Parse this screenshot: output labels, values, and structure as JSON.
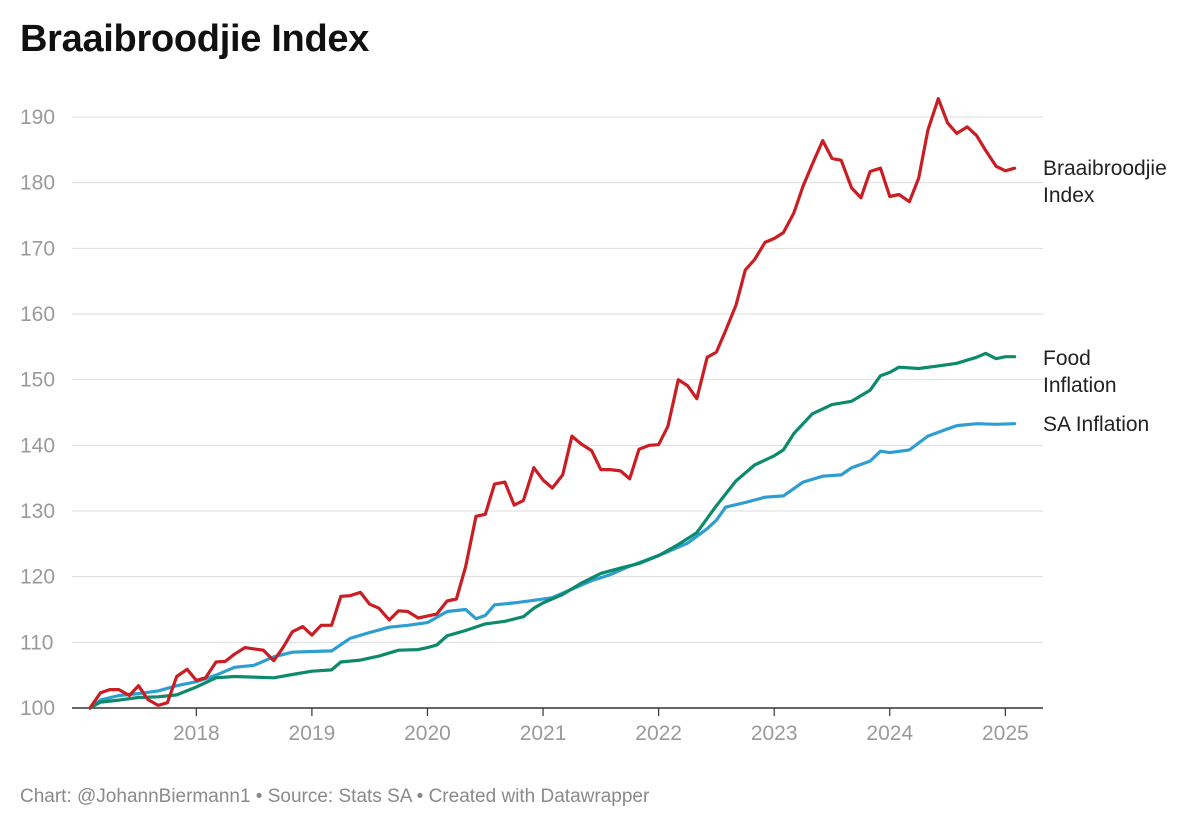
{
  "chart_data": {
    "type": "line",
    "title": "Braaibroodjie Index",
    "footer": "Chart: @JohannBiermann1 • Source: Stats SA • Created with Datawrapper",
    "ylim": [
      100,
      190
    ],
    "yticks": [
      100,
      110,
      120,
      130,
      140,
      150,
      160,
      170,
      180,
      190
    ],
    "xlim": [
      2017.08,
      2025.17
    ],
    "xticks": [
      2018,
      2019,
      2020,
      2021,
      2022,
      2023,
      2024,
      2025
    ],
    "grid": true,
    "legend": "inline-right",
    "series": [
      {
        "name": "Braaibroodjie Index",
        "label_lines": [
          "Braaibroodjie",
          "Index"
        ],
        "color": "#c81e24",
        "points": [
          [
            2017.08,
            100
          ],
          [
            2017.17,
            102.3
          ],
          [
            2017.25,
            102.8
          ],
          [
            2017.33,
            102.8
          ],
          [
            2017.42,
            101.9
          ],
          [
            2017.5,
            103.4
          ],
          [
            2017.58,
            101.3
          ],
          [
            2017.67,
            100.4
          ],
          [
            2017.75,
            100.8
          ],
          [
            2017.83,
            104.8
          ],
          [
            2017.92,
            105.9
          ],
          [
            2018.0,
            104.2
          ],
          [
            2018.08,
            104.6
          ],
          [
            2018.17,
            107.0
          ],
          [
            2018.25,
            107.1
          ],
          [
            2018.33,
            108.2
          ],
          [
            2018.42,
            109.2
          ],
          [
            2018.5,
            109.0
          ],
          [
            2018.58,
            108.8
          ],
          [
            2018.67,
            107.2
          ],
          [
            2018.75,
            109.2
          ],
          [
            2018.83,
            111.6
          ],
          [
            2018.92,
            112.4
          ],
          [
            2019.0,
            111.1
          ],
          [
            2019.08,
            112.6
          ],
          [
            2019.17,
            112.6
          ],
          [
            2019.25,
            117.0
          ],
          [
            2019.33,
            117.1
          ],
          [
            2019.42,
            117.6
          ],
          [
            2019.5,
            115.8
          ],
          [
            2019.58,
            115.2
          ],
          [
            2019.67,
            113.4
          ],
          [
            2019.75,
            114.8
          ],
          [
            2019.83,
            114.7
          ],
          [
            2019.92,
            113.7
          ],
          [
            2020.0,
            114.0
          ],
          [
            2020.08,
            114.3
          ],
          [
            2020.17,
            116.3
          ],
          [
            2020.25,
            116.6
          ],
          [
            2020.33,
            121.5
          ],
          [
            2020.42,
            129.2
          ],
          [
            2020.5,
            129.5
          ],
          [
            2020.58,
            134.1
          ],
          [
            2020.67,
            134.4
          ],
          [
            2020.75,
            130.9
          ],
          [
            2020.83,
            131.6
          ],
          [
            2020.92,
            136.6
          ],
          [
            2021.0,
            134.7
          ],
          [
            2021.08,
            133.5
          ],
          [
            2021.17,
            135.5
          ],
          [
            2021.25,
            141.4
          ],
          [
            2021.33,
            140.2
          ],
          [
            2021.42,
            139.2
          ],
          [
            2021.5,
            136.3
          ],
          [
            2021.58,
            136.3
          ],
          [
            2021.67,
            136.1
          ],
          [
            2021.75,
            134.9
          ],
          [
            2021.83,
            139.4
          ],
          [
            2021.92,
            140.0
          ],
          [
            2022.0,
            140.1
          ],
          [
            2022.08,
            142.9
          ],
          [
            2022.17,
            150.0
          ],
          [
            2022.25,
            149.1
          ],
          [
            2022.33,
            147.1
          ],
          [
            2022.42,
            153.4
          ],
          [
            2022.5,
            154.2
          ],
          [
            2022.58,
            157.5
          ],
          [
            2022.67,
            161.4
          ],
          [
            2022.75,
            166.7
          ],
          [
            2022.83,
            168.3
          ],
          [
            2022.92,
            170.9
          ],
          [
            2023.0,
            171.5
          ],
          [
            2023.08,
            172.4
          ],
          [
            2023.17,
            175.4
          ],
          [
            2023.25,
            179.5
          ],
          [
            2023.33,
            182.8
          ],
          [
            2023.42,
            186.4
          ],
          [
            2023.5,
            183.7
          ],
          [
            2023.58,
            183.4
          ],
          [
            2023.67,
            179.2
          ],
          [
            2023.75,
            177.7
          ],
          [
            2023.83,
            181.7
          ],
          [
            2023.92,
            182.2
          ],
          [
            2024.0,
            177.9
          ],
          [
            2024.08,
            178.2
          ],
          [
            2024.17,
            177.1
          ],
          [
            2024.25,
            180.7
          ],
          [
            2024.33,
            188.0
          ],
          [
            2024.42,
            192.8
          ],
          [
            2024.5,
            189.1
          ],
          [
            2024.58,
            187.5
          ],
          [
            2024.67,
            188.5
          ],
          [
            2024.75,
            187.2
          ],
          [
            2024.83,
            184.9
          ],
          [
            2024.92,
            182.5
          ],
          [
            2025.0,
            181.8
          ],
          [
            2025.08,
            182.2
          ]
        ]
      },
      {
        "name": "Food Inflation",
        "label_lines": [
          "Food",
          "Inflation"
        ],
        "color": "#0d8a6b",
        "points": [
          [
            2017.08,
            100
          ],
          [
            2017.17,
            100.9
          ],
          [
            2017.33,
            101.2
          ],
          [
            2017.5,
            101.6
          ],
          [
            2017.67,
            101.7
          ],
          [
            2017.83,
            102.0
          ],
          [
            2018.0,
            103.2
          ],
          [
            2018.17,
            104.6
          ],
          [
            2018.33,
            104.8
          ],
          [
            2018.5,
            104.7
          ],
          [
            2018.67,
            104.6
          ],
          [
            2018.83,
            105.1
          ],
          [
            2019.0,
            105.6
          ],
          [
            2019.17,
            105.8
          ],
          [
            2019.25,
            107.0
          ],
          [
            2019.42,
            107.3
          ],
          [
            2019.58,
            107.9
          ],
          [
            2019.75,
            108.8
          ],
          [
            2019.92,
            108.9
          ],
          [
            2020.0,
            109.2
          ],
          [
            2020.08,
            109.6
          ],
          [
            2020.17,
            111.0
          ],
          [
            2020.33,
            111.8
          ],
          [
            2020.5,
            112.8
          ],
          [
            2020.67,
            113.2
          ],
          [
            2020.83,
            113.9
          ],
          [
            2020.92,
            115.2
          ],
          [
            2021.0,
            116.0
          ],
          [
            2021.17,
            117.3
          ],
          [
            2021.33,
            119.0
          ],
          [
            2021.5,
            120.5
          ],
          [
            2021.67,
            121.3
          ],
          [
            2021.83,
            122.0
          ],
          [
            2022.0,
            123.2
          ],
          [
            2022.17,
            124.9
          ],
          [
            2022.33,
            126.7
          ],
          [
            2022.5,
            130.8
          ],
          [
            2022.67,
            134.6
          ],
          [
            2022.83,
            137.0
          ],
          [
            2023.0,
            138.4
          ],
          [
            2023.08,
            139.3
          ],
          [
            2023.17,
            141.8
          ],
          [
            2023.33,
            144.8
          ],
          [
            2023.5,
            146.2
          ],
          [
            2023.67,
            146.7
          ],
          [
            2023.83,
            148.4
          ],
          [
            2023.92,
            150.6
          ],
          [
            2024.0,
            151.1
          ],
          [
            2024.08,
            151.9
          ],
          [
            2024.25,
            151.7
          ],
          [
            2024.42,
            152.1
          ],
          [
            2024.58,
            152.5
          ],
          [
            2024.75,
            153.4
          ],
          [
            2024.83,
            154.0
          ],
          [
            2024.92,
            153.2
          ],
          [
            2025.0,
            153.5
          ],
          [
            2025.08,
            153.5
          ]
        ]
      },
      {
        "name": "SA Inflation",
        "label_lines": [
          "SA Inflation"
        ],
        "color": "#2d9ecf",
        "points": [
          [
            2017.08,
            100
          ],
          [
            2017.17,
            101.2
          ],
          [
            2017.33,
            101.9
          ],
          [
            2017.5,
            102.2
          ],
          [
            2017.67,
            102.6
          ],
          [
            2017.83,
            103.4
          ],
          [
            2018.0,
            104.0
          ],
          [
            2018.17,
            105.0
          ],
          [
            2018.33,
            106.2
          ],
          [
            2018.5,
            106.5
          ],
          [
            2018.67,
            107.8
          ],
          [
            2018.83,
            108.5
          ],
          [
            2019.0,
            108.6
          ],
          [
            2019.17,
            108.7
          ],
          [
            2019.33,
            110.6
          ],
          [
            2019.5,
            111.5
          ],
          [
            2019.67,
            112.3
          ],
          [
            2019.83,
            112.6
          ],
          [
            2020.0,
            113.0
          ],
          [
            2020.17,
            114.7
          ],
          [
            2020.33,
            115.0
          ],
          [
            2020.42,
            113.6
          ],
          [
            2020.5,
            114.1
          ],
          [
            2020.58,
            115.7
          ],
          [
            2020.75,
            116.0
          ],
          [
            2020.92,
            116.4
          ],
          [
            2021.08,
            116.8
          ],
          [
            2021.25,
            118.1
          ],
          [
            2021.42,
            119.4
          ],
          [
            2021.58,
            120.3
          ],
          [
            2021.75,
            121.6
          ],
          [
            2021.92,
            122.7
          ],
          [
            2022.08,
            123.8
          ],
          [
            2022.25,
            125.1
          ],
          [
            2022.42,
            127.3
          ],
          [
            2022.5,
            128.6
          ],
          [
            2022.58,
            130.6
          ],
          [
            2022.75,
            131.3
          ],
          [
            2022.92,
            132.1
          ],
          [
            2023.08,
            132.3
          ],
          [
            2023.25,
            134.4
          ],
          [
            2023.42,
            135.3
          ],
          [
            2023.58,
            135.5
          ],
          [
            2023.67,
            136.6
          ],
          [
            2023.83,
            137.6
          ],
          [
            2023.92,
            139.1
          ],
          [
            2024.0,
            138.9
          ],
          [
            2024.17,
            139.3
          ],
          [
            2024.33,
            141.4
          ],
          [
            2024.5,
            142.5
          ],
          [
            2024.58,
            143.0
          ],
          [
            2024.75,
            143.3
          ],
          [
            2024.92,
            143.2
          ],
          [
            2025.08,
            143.3
          ]
        ]
      }
    ]
  }
}
